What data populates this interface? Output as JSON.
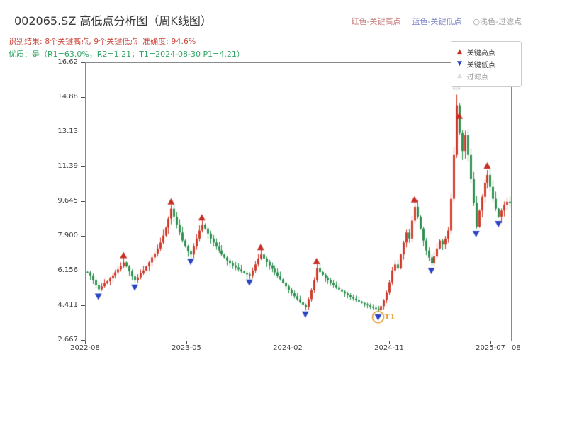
{
  "header": {
    "title": "002065.SZ 高低点分析图（周K线图）",
    "legend_inline": [
      {
        "label": "红色-关键高点",
        "color": "#c98080"
      },
      {
        "label": "蓝色-关键低点",
        "color": "#8089c9"
      },
      {
        "label": "○浅色-过滤点",
        "color": "#a0a0a0"
      }
    ],
    "result_line": "识别结果: 8个关键高点, 9个关键低点  准确度: 94.6%",
    "quality_line": "优质：是（R1=63.0%，R2=1.21；T1=2024-08-30 P1=4.21）"
  },
  "legend_box": {
    "items": [
      {
        "label": "关键高点",
        "glyph": "▲",
        "color": "#c62f23"
      },
      {
        "label": "关键低点",
        "glyph": "▼",
        "color": "#2b44c4"
      },
      {
        "label": "过滤点",
        "glyph": "▲",
        "color": "#dcdcdc"
      }
    ]
  },
  "chart_data": {
    "type": "candlestick",
    "title": "002065.SZ 高低点分析图（周K线图）",
    "x_ticks": [
      "2022-08",
      "2023-05",
      "2024-02",
      "2024-11",
      "2025-07"
    ],
    "x_extra_label": "08",
    "y_ticks": [
      "16.62",
      "14.88",
      "13.13",
      "11.39",
      "9.645",
      "7.900",
      "6.156",
      "4.411",
      "2.667"
    ],
    "y_min": 2.667,
    "y_max": 16.62,
    "up_color": "#cf3b2c",
    "down_color": "#2f9150",
    "weekly_closes": [
      6.1,
      5.95,
      5.7,
      5.45,
      5.25,
      5.4,
      5.55,
      5.65,
      5.8,
      5.95,
      6.1,
      6.25,
      6.4,
      6.6,
      6.4,
      6.15,
      5.9,
      5.7,
      5.85,
      6.05,
      6.2,
      6.4,
      6.6,
      6.85,
      7.05,
      7.3,
      7.6,
      7.95,
      8.35,
      8.8,
      9.3,
      8.9,
      8.5,
      8.1,
      7.7,
      7.4,
      7.15,
      7.0,
      7.4,
      7.8,
      8.2,
      8.5,
      8.3,
      8.05,
      7.8,
      7.6,
      7.4,
      7.2,
      7.0,
      6.85,
      6.7,
      6.55,
      6.45,
      6.35,
      6.25,
      6.15,
      6.08,
      6.0,
      5.95,
      6.2,
      6.5,
      6.8,
      7.0,
      6.8,
      6.62,
      6.45,
      6.28,
      6.1,
      5.92,
      5.75,
      5.58,
      5.4,
      5.22,
      5.05,
      4.9,
      4.75,
      4.6,
      4.48,
      4.35,
      4.75,
      5.2,
      5.7,
      6.3,
      6.12,
      5.98,
      5.84,
      5.7,
      5.58,
      5.46,
      5.35,
      5.24,
      5.14,
      5.04,
      4.95,
      4.86,
      4.78,
      4.7,
      4.63,
      4.56,
      4.5,
      4.44,
      4.38,
      4.32,
      4.26,
      4.21,
      4.4,
      4.7,
      5.1,
      5.6,
      6.2,
      6.5,
      6.3,
      7.0,
      7.6,
      8.1,
      7.8,
      8.7,
      9.4,
      8.9,
      8.3,
      7.7,
      7.2,
      6.85,
      6.55,
      6.9,
      7.3,
      7.7,
      7.5,
      7.8,
      8.2,
      9.8,
      12.0,
      14.5,
      13.1,
      12.2,
      13.0,
      12.0,
      10.8,
      9.6,
      8.4,
      9.2,
      9.9,
      10.6,
      11.0,
      10.4,
      9.8,
      9.3,
      8.9,
      9.2,
      9.5,
      9.65,
      9.6
    ],
    "high_points": [
      {
        "week": 13,
        "price": 6.6
      },
      {
        "week": 30,
        "price": 9.3
      },
      {
        "week": 41,
        "price": 8.5
      },
      {
        "week": 62,
        "price": 7.0
      },
      {
        "week": 82,
        "price": 6.3
      },
      {
        "week": 117,
        "price": 9.4
      },
      {
        "week": 133,
        "price": 13.6
      },
      {
        "week": 143,
        "price": 11.1
      }
    ],
    "low_points": [
      {
        "week": 4,
        "price": 5.25
      },
      {
        "week": 17,
        "price": 5.7
      },
      {
        "week": 37,
        "price": 7.0
      },
      {
        "week": 58,
        "price": 5.95
      },
      {
        "week": 78,
        "price": 4.35
      },
      {
        "week": 104,
        "price": 4.21
      },
      {
        "week": 123,
        "price": 6.55
      },
      {
        "week": 139,
        "price": 8.4
      },
      {
        "week": 147,
        "price": 8.9
      }
    ],
    "filtered_points": [
      {
        "week": 132,
        "price": 15.1
      }
    ],
    "annotation": {
      "label": "T1",
      "week": 104,
      "price": 4.21,
      "color": "#e6a23c"
    },
    "marker_colors": {
      "high": "#c62f23",
      "low": "#2b44c4",
      "filtered_fill": "#f0f0f0",
      "filtered_stroke": "#b5b5b5"
    }
  }
}
